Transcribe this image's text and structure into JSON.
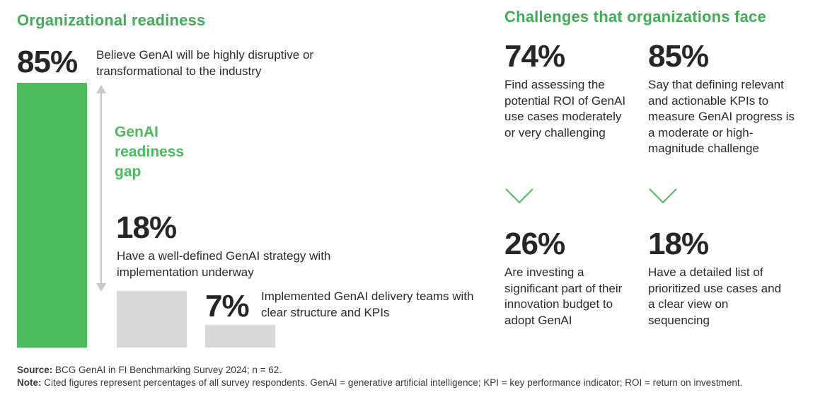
{
  "left": {
    "title": "Organizational readiness",
    "stat_main": {
      "value": "85%",
      "text": "Believe GenAI will be highly disruptive or transformational to the industry"
    },
    "gap_label": [
      "GenAI",
      "readiness",
      "gap"
    ],
    "stat_strategy": {
      "value": "18%",
      "text": "Have a well-defined GenAI strategy with implementation underway"
    },
    "stat_delivery": {
      "value": "7%",
      "text": "Implemented GenAI delivery teams with clear structure and KPIs"
    }
  },
  "right": {
    "title": "Challenges that organizations face",
    "stats": [
      {
        "value": "74%",
        "text": "Find assessing the potential ROI of GenAI use cases moderately or very challenging"
      },
      {
        "value": "85%",
        "text": "Say that defining relevant and actionable KPIs to measure GenAI progress is a moderate or high-magnitude challenge"
      },
      {
        "value": "26%",
        "text": "Are investing a significant part of their innovation budget to adopt GenAI"
      },
      {
        "value": "18%",
        "text": "Have a detailed list of prioritized use cases and a clear view on sequencing"
      }
    ]
  },
  "footer": {
    "source_label": "Source:",
    "source_text": "BCG GenAI in FI Benchmarking Survey 2024; n = 62.",
    "note_label": "Note:",
    "note_text": "Cited figures represent percentages of all survey respondents. GenAI = generative artificial intelligence; KPI = key performance indicator; ROI = return on investment."
  },
  "chart_data": {
    "type": "bar",
    "categories": [
      "Highly disruptive or transformational",
      "Well-defined GenAI strategy",
      "Implemented GenAI delivery teams"
    ],
    "values": [
      85,
      18,
      7
    ],
    "ylim": [
      0,
      85
    ],
    "colors": [
      "#4cbb5e",
      "#d9d9d9",
      "#d9d9d9"
    ]
  },
  "colors": {
    "accent": "#4cbb5e",
    "title_green": "#3fae56",
    "bar_grey": "#d9d9d9",
    "arrow_grey": "#c8c8c8"
  }
}
